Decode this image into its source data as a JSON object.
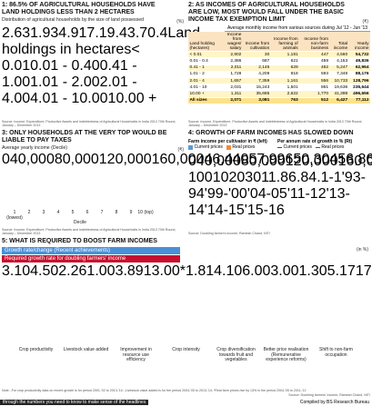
{
  "chart_data": [
    {
      "type": "pie",
      "title": "1: 86.5% OF AGRICULTURAL HOUSEHOLDS HAVE LAND HOLDINGS LESS THAN 2 HECTARES",
      "subtitle": "Distribution of agricultural households by the size of land possessed",
      "unit": "(%)",
      "legend_title": "Land holdings in hectares",
      "categories": [
        "< 0.01",
        "0.01 - 0.40",
        "0.41 - 1.00",
        "1.01 - 2.00",
        "2.01 - 4.00",
        "4.01 - 10.00",
        "10.00 +"
      ],
      "values": [
        2.6,
        31.9,
        34.9,
        17.1,
        9.4,
        3.7,
        0.4
      ],
      "colors": [
        "#e9c43b",
        "#f39a2d",
        "#9cc84a",
        "#f5b06a",
        "#9a8fc2",
        "#e57fb4",
        "#d7262e"
      ],
      "source": "Source: Income, Expenditure, Productive Assets and Indebtedness of Agricultural Households in India 2013 70th Round, January – December 2013"
    },
    {
      "type": "bar",
      "title": "3: ONLY HOUSEHOLDS AT THE VERY TOP WOULD BE LIABLE TO PAY TAXES",
      "subtitle": "Average yearly income (Decile)",
      "unit": "(₹)",
      "x_label": "Decile",
      "categories": [
        "1 (lowest)",
        "2",
        "3",
        "4",
        "5",
        "6",
        "7",
        "8",
        "9",
        "10 (top)"
      ],
      "values": [
        46440,
        57996,
        50304,
        56868,
        65652,
        69864,
        66876,
        73464,
        89160,
        169496
      ],
      "value_labels": [
        "46,440",
        "57,996",
        "50,304",
        "56,868",
        "65,652",
        "69,864",
        "66,876",
        "73,464",
        "89,160",
        "169,496"
      ],
      "color": "#7ec6d8",
      "ylim": [
        0,
        175000
      ],
      "yticks": [
        0,
        {
          "value": 40000,
          "label": "40,000"
        },
        {
          "value": 80000,
          "label": "80,000"
        },
        {
          "value": 120000,
          "label": "120,000"
        },
        {
          "value": 160000,
          "label": "160,000"
        }
      ],
      "source": "Source: Income, Expenditure, Productive Assets and Indebtedness of Agricultural Households in India 2013 70th Round, January – December 2013"
    },
    {
      "type": "combo",
      "title": "4: GROWTH OF FARM INCOMES HAS SLOWED DOWN",
      "legend_titles": [
        "Farm income per cultivator in ₹ (left)",
        "Per annum rate of growth in % (Rt)"
      ],
      "categories": [
        "'93-94",
        "'99-'00",
        "'04-05",
        "'11-12",
        "'13-14",
        "'14-15",
        "'15-16"
      ],
      "series": [
        {
          "name": "Current prices",
          "color": "#5b9bd5",
          "values": [
            9000,
            16000,
            22000,
            78000,
            92000,
            100000,
            108000
          ]
        },
        {
          "name": "Real prices",
          "color": "#f08a3c",
          "values": [
            20000,
            22000,
            24000,
            42000,
            45000,
            46000,
            47000
          ]
        },
        {
          "name": "Current prices",
          "color": "#1f4e9c",
          "axis": "y2",
          "values": [
            null,
            11.8,
            5.5,
            17.5,
            9.5,
            7.5,
            6.8
          ]
        },
        {
          "name": "Real prices",
          "color": "#d7191c",
          "axis": "y2",
          "values": [
            null,
            4.1,
            2.8,
            9.5,
            3.0,
            2.1,
            -1.0
          ]
        }
      ],
      "ylim": [
        0,
        160000
      ],
      "yticks": [
        0,
        {
          "value": 40000,
          "label": "40,000"
        },
        {
          "value": 80000,
          "label": "80,000"
        },
        {
          "value": 120000,
          "label": "120,000"
        },
        {
          "value": 160000,
          "label": "160,000"
        }
      ],
      "y2lim": [
        -10,
        30
      ],
      "y2ticks": [
        -10,
        0,
        10,
        20,
        30
      ],
      "source": "Source: Doubling farmer's income, Ramesh Chand, NITI"
    },
    {
      "type": "bar",
      "title": "5: WHAT IS REQUIRED TO BOOST FARM INCOMES",
      "unit": "(in %)",
      "categories": [
        "Crop productivity",
        "Livestock value added",
        "Improvement in resource use efficiency",
        "Crop intensity",
        "Crop diversification towards fruit and vegetables",
        "Better price realisation (Remunerative experience reforms)",
        "Shift to non-farm occupation"
      ],
      "series": [
        {
          "name": "Growth rate/change (Recent achievements)",
          "color": "#4a90d9",
          "values": [
            3.1,
            4.5,
            2.26,
            1.0,
            3.89,
            13.0,
            1.81
          ],
          "value_labels": [
            "3.10",
            "4.50",
            "2.26",
            "1.00",
            "3.89",
            "13.00*",
            "1.81"
          ]
        },
        {
          "name": "Required growth rate for doubling farmers' income",
          "color": "#c8102e",
          "values": [
            4.1,
            6.0,
            3.0,
            1.3,
            5.17,
            17.0,
            2.6
          ],
          "value_labels": [
            "4.10",
            "6.00",
            "3.00",
            "1.30",
            "5.17",
            "17.00",
            "2.60"
          ]
        }
      ],
      "note": "Note: -For crop productivity data on recent growth is for period 2001-'02 to 2013-'14; -Livestock value added is for the period 2004-'05 to 2013-'14; *Real farm prices rise by 13% in the period 2004-'05 to 2011-'12",
      "source": "Source: Doubling farmers' income, Ramesh Chand, NITI"
    }
  ],
  "table": {
    "title": "2: AS INCOMES OF AGRICULTURAL HOUSEHOLDS ARE LOW, MOST WOULD FALL UNDER THE BASIC INCOME TAX EXEMPTION LIMIT",
    "unit": "(₹)",
    "caption": "Average monthly income from various sources during Jul '12 - Jun '13",
    "columns": [
      "Land holding (hectares)",
      "Income from wages/ salary",
      "Income from cultivation",
      "Income from farming of animals",
      "Income from non-farm business",
      "Total income",
      "Yearly income"
    ],
    "rows": [
      [
        "< 0.01",
        "2,902",
        "30",
        "1,181",
        "447",
        "4,560",
        "54,732"
      ],
      [
        "0.01 - 0.4",
        "2,386",
        "687",
        "621",
        "459",
        "4,153",
        "49,836"
      ],
      [
        "0.41 - 1",
        "2,011",
        "2,145",
        "629",
        "462",
        "5,247",
        "62,964"
      ],
      [
        "1.01 - 2",
        "1,728",
        "4,209",
        "818",
        "593",
        "7,348",
        "88,176"
      ],
      [
        "2.01 - 4",
        "1,657",
        "7,359",
        "1,161",
        "556",
        "10,733",
        "128,796"
      ],
      [
        "4.01 - 10",
        "2,031",
        "15,243",
        "1,501",
        "861",
        "19,636",
        "235,644"
      ],
      [
        "10.00 +",
        "1,311",
        "35,685",
        "2,622",
        "1,770",
        "41,388",
        "496,656"
      ],
      [
        "All sizes",
        "2,071",
        "3,081",
        "763",
        "512",
        "6,427",
        "77,112"
      ]
    ],
    "source": "Source: Income, Expenditure, Productive Assets and Indebtedness of Agricultural Households in India 2013 70th Round, January – December 2013"
  },
  "footer": {
    "left": "through the numbers you need to know to make sense of the headlines",
    "right": "Compiled by BS Research Bureau"
  }
}
